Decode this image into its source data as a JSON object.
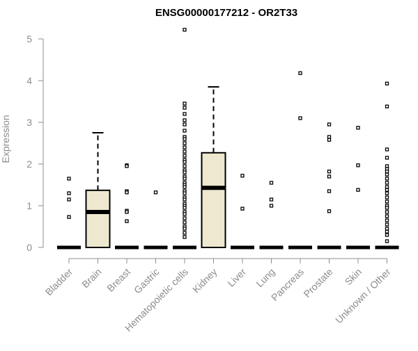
{
  "chart_data": {
    "type": "box",
    "title": "ENSG00000177212 - OR2T33",
    "xlabel": "",
    "ylabel": "Expression",
    "ylim": [
      0,
      5.25
    ],
    "yticks": [
      "0",
      "1",
      "2",
      "3",
      "4",
      "5"
    ],
    "categories": [
      "Bladder",
      "Brain",
      "Breast",
      "Gastric",
      "Hematopoietic cells",
      "Kidney",
      "Liver",
      "Lung",
      "Pancreas",
      "Prostate",
      "Skin",
      "Unknown / Other"
    ],
    "box_fill": "#ede8cf",
    "line_color": "#000000",
    "axis_color": "#8c8c8c",
    "boxes": [
      {
        "category": "Bladder",
        "min": 0,
        "q1": 0,
        "median": 0,
        "q3": 0,
        "max": 0,
        "outliers": [
          1.65,
          1.3,
          1.15,
          0.73
        ]
      },
      {
        "category": "Brain",
        "min": 0,
        "q1": 0,
        "median": 0.85,
        "q3": 1.37,
        "max": 2.75,
        "outliers": []
      },
      {
        "category": "Breast",
        "min": 0,
        "q1": 0,
        "median": 0,
        "q3": 0,
        "max": 0,
        "outliers": [
          1.97,
          1.95,
          1.35,
          1.32,
          0.88,
          0.85,
          0.63
        ]
      },
      {
        "category": "Gastric",
        "min": 0,
        "q1": 0,
        "median": 0,
        "q3": 0,
        "max": 0,
        "outliers": [
          1.32
        ]
      },
      {
        "category": "Hematopoietic cells",
        "min": 0,
        "q1": 0,
        "median": 0,
        "q3": 0,
        "max": 0,
        "outliers": [
          5.22,
          3.45,
          3.35,
          3.2,
          3.05,
          2.95,
          2.8,
          2.65,
          2.6,
          2.5,
          2.4,
          2.3,
          2.2,
          2.1,
          2.05,
          1.95,
          1.85,
          1.8,
          1.7,
          1.65,
          1.55,
          1.5,
          1.45,
          1.35,
          1.3,
          1.2,
          1.15,
          1.05,
          1.0,
          0.95,
          0.85,
          0.8,
          0.7,
          0.6,
          0.5,
          0.45,
          0.35,
          0.25
        ]
      },
      {
        "category": "Kidney",
        "min": 0,
        "q1": 0,
        "median": 1.43,
        "q3": 2.27,
        "max": 3.85,
        "outliers": []
      },
      {
        "category": "Liver",
        "min": 0,
        "q1": 0,
        "median": 0,
        "q3": 0,
        "max": 0,
        "outliers": [
          1.72,
          0.93
        ]
      },
      {
        "category": "Lung",
        "min": 0,
        "q1": 0,
        "median": 0,
        "q3": 0,
        "max": 0,
        "outliers": [
          1.55,
          1.15,
          1.0
        ]
      },
      {
        "category": "Pancreas",
        "min": 0,
        "q1": 0,
        "median": 0,
        "q3": 0,
        "max": 0,
        "outliers": [
          4.18,
          3.1
        ]
      },
      {
        "category": "Prostate",
        "min": 0,
        "q1": 0,
        "median": 0,
        "q3": 0,
        "max": 0,
        "outliers": [
          2.95,
          2.65,
          2.58,
          1.82,
          1.7,
          1.35,
          0.87
        ]
      },
      {
        "category": "Skin",
        "min": 0,
        "q1": 0,
        "median": 0,
        "q3": 0,
        "max": 0,
        "outliers": [
          2.87,
          1.97,
          1.38
        ]
      },
      {
        "category": "Unknown / Other",
        "min": 0,
        "q1": 0,
        "median": 0,
        "q3": 0,
        "max": 0,
        "outliers": [
          3.93,
          3.38,
          2.35,
          2.15,
          1.95,
          1.88,
          1.82,
          1.75,
          1.65,
          1.55,
          1.45,
          1.38,
          1.3,
          1.2,
          1.1,
          1.0,
          0.95,
          0.85,
          0.75,
          0.65,
          0.55,
          0.45,
          0.38,
          0.3,
          0.15
        ]
      }
    ]
  }
}
